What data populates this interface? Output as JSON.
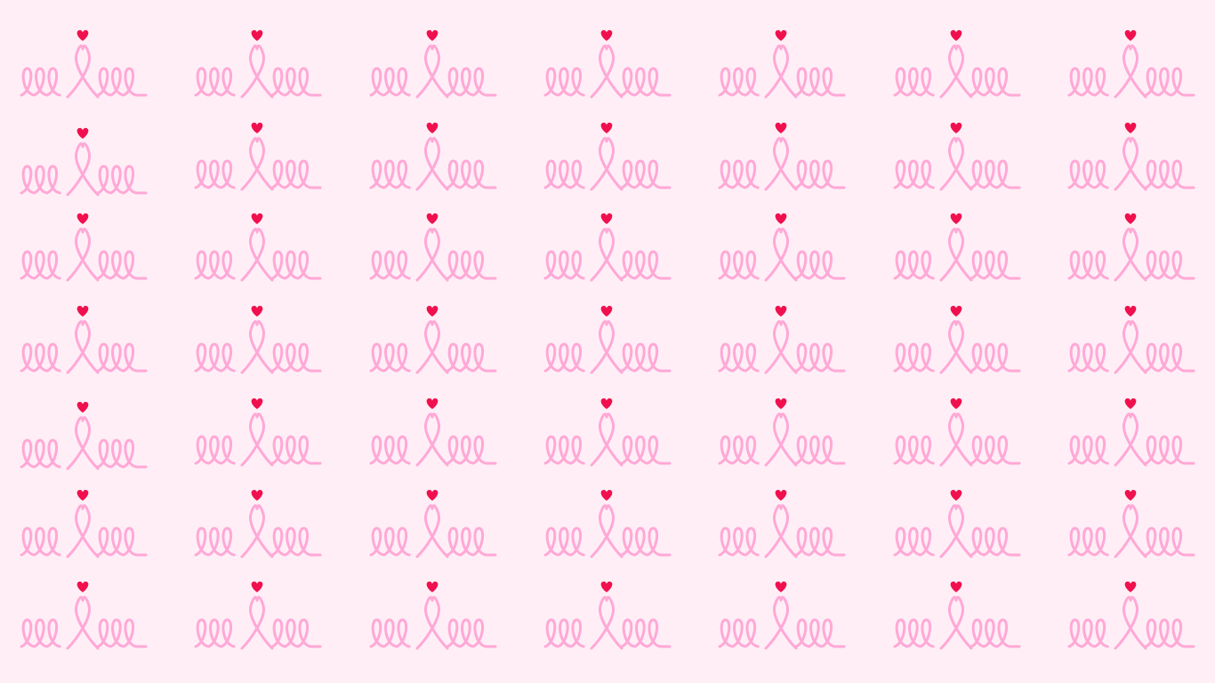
{
  "background": {
    "name": "pink-ribbon-heart-pattern",
    "background_color": "#ffeef6",
    "ribbon_color": "#ffa8d6",
    "heart_color": "#f0104e",
    "motif_icon": "ribbon-heart-icon",
    "columns": 7,
    "rows": 7
  }
}
